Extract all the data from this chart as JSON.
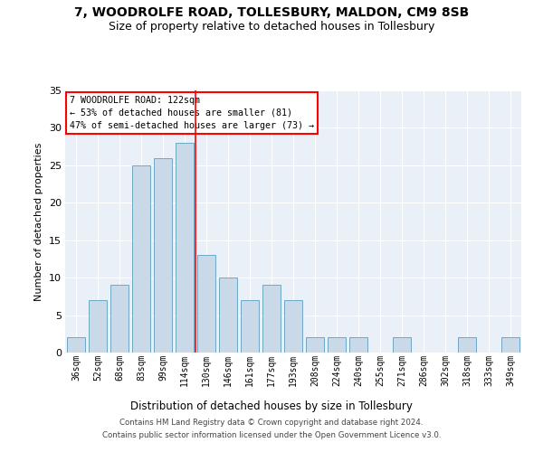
{
  "title1": "7, WOODROLFE ROAD, TOLLESBURY, MALDON, CM9 8SB",
  "title2": "Size of property relative to detached houses in Tollesbury",
  "xlabel": "Distribution of detached houses by size in Tollesbury",
  "ylabel": "Number of detached properties",
  "footer1": "Contains HM Land Registry data © Crown copyright and database right 2024.",
  "footer2": "Contains public sector information licensed under the Open Government Licence v3.0.",
  "categories": [
    "36sqm",
    "52sqm",
    "68sqm",
    "83sqm",
    "99sqm",
    "114sqm",
    "130sqm",
    "146sqm",
    "161sqm",
    "177sqm",
    "193sqm",
    "208sqm",
    "224sqm",
    "240sqm",
    "255sqm",
    "271sqm",
    "286sqm",
    "302sqm",
    "318sqm",
    "333sqm",
    "349sqm"
  ],
  "values": [
    2,
    7,
    9,
    25,
    26,
    28,
    13,
    10,
    7,
    9,
    7,
    2,
    2,
    2,
    0,
    2,
    0,
    0,
    2,
    0,
    2
  ],
  "bar_color": "#c9d9e8",
  "bar_edge_color": "#6fa8c8",
  "reference_line_x": 5.5,
  "reference_line_color": "red",
  "annotation_text1": "7 WOODROLFE ROAD: 122sqm",
  "annotation_text2": "← 53% of detached houses are smaller (81)",
  "annotation_text3": "47% of semi-detached houses are larger (73) →",
  "annotation_box_color": "red",
  "ylim": [
    0,
    35
  ],
  "yticks": [
    0,
    5,
    10,
    15,
    20,
    25,
    30,
    35
  ],
  "plot_bg_color": "#eaf0f8"
}
